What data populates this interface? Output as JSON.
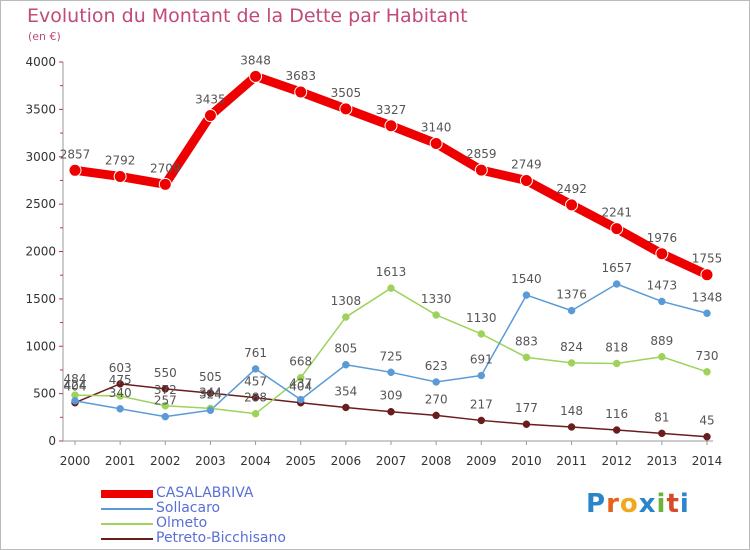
{
  "header": {
    "title": "Evolution du Montant de la Dette par Habitant",
    "subtitle": "(en €)"
  },
  "logo": {
    "text": "Proxiti",
    "letters": [
      "P",
      "r",
      "o",
      "x",
      "i",
      "t",
      "i"
    ],
    "colors": [
      "#2a86c8",
      "#e8601c",
      "#f2a81d",
      "#2a86c8",
      "#6cb33e",
      "#d64a2a",
      "#2a86c8"
    ]
  },
  "chart_data": {
    "type": "line",
    "x": [
      2000,
      2001,
      2002,
      2003,
      2004,
      2005,
      2006,
      2007,
      2008,
      2009,
      2010,
      2011,
      2012,
      2013,
      2014
    ],
    "ylim": [
      0,
      4000
    ],
    "yticks": [
      0,
      500,
      1000,
      1500,
      2000,
      2500,
      3000,
      3500,
      4000
    ],
    "grid": false,
    "legend_position": "bottom-left",
    "series": [
      {
        "name": "CASALABRIVA",
        "color": "#ee0000",
        "values": [
          2857,
          2792,
          2709,
          3435,
          3848,
          3683,
          3505,
          3327,
          3140,
          2859,
          2749,
          2492,
          2241,
          1976,
          1755
        ],
        "labels": [
          "2857",
          "2792",
          "2709",
          "3435",
          "3848",
          "3683",
          "3505",
          "3327",
          "3140",
          "2859",
          "2749",
          "2492",
          "2241",
          "1976",
          "1755"
        ]
      },
      {
        "name": "Sollacaro",
        "color": "#5b9bd5",
        "values": [
          424,
          340,
          257,
          324,
          761,
          437,
          805,
          725,
          623,
          691,
          1540,
          1376,
          1657,
          1473,
          1348
        ],
        "labels": [
          "424",
          "340",
          "257",
          "324",
          "761",
          "437",
          "805",
          "725",
          "623",
          "691",
          "1540",
          "1376",
          "1657",
          "1473",
          "1348"
        ]
      },
      {
        "name": "Olmeto",
        "color": "#9ed25b",
        "values": [
          484,
          475,
          372,
          344,
          288,
          668,
          1308,
          1613,
          1330,
          1130,
          883,
          824,
          818,
          889,
          730
        ],
        "labels": [
          "484",
          "475",
          "372",
          "344",
          "288",
          "668",
          "1308",
          "1613",
          "1330",
          "1130",
          "883",
          "824",
          "818",
          "889",
          "730"
        ]
      },
      {
        "name": "Petreto-Bicchisano",
        "color": "#6b1c1c",
        "values": [
          404,
          603,
          550,
          505,
          457,
          404,
          354,
          309,
          270,
          217,
          177,
          148,
          116,
          81,
          45
        ],
        "labels": [
          "404",
          "603",
          "550",
          "505",
          "457",
          "404",
          "354",
          "309",
          "270",
          "217",
          "177",
          "148",
          "116",
          "81",
          "45"
        ]
      }
    ]
  }
}
